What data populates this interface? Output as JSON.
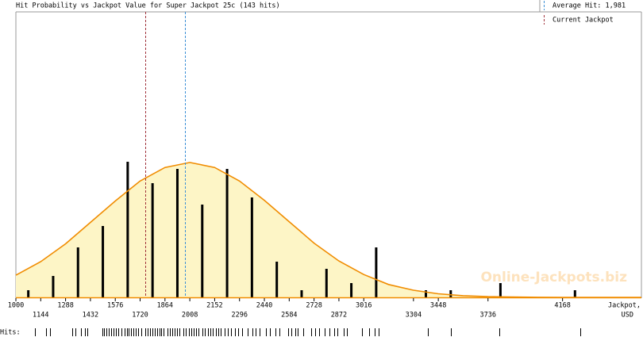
{
  "chart_data": {
    "type": "histogram-curve",
    "title": "Hit Probability vs Jackpot Value for Super Jackpot 25c (143 hits)",
    "x_label": [
      "Jackpot,",
      "USD"
    ],
    "watermark": "Online-Jackpots.biz",
    "xlim": [
      1000,
      4625
    ],
    "ylim": [
      0,
      40
    ],
    "xticks": [
      1000,
      1144,
      1288,
      1432,
      1576,
      1720,
      1864,
      2008,
      2152,
      2296,
      2440,
      2584,
      2728,
      2872,
      3016,
      3304,
      3448,
      3736,
      4168
    ],
    "bars": {
      "color": "#000000",
      "x": [
        1072,
        1216,
        1360,
        1504,
        1648,
        1792,
        1936,
        2080,
        2224,
        2368,
        2512,
        2656,
        2800,
        2944,
        3088,
        3376,
        3520,
        3808,
        4240
      ],
      "values": [
        1,
        3,
        7,
        10,
        19,
        16,
        18,
        13,
        18,
        14,
        5,
        1,
        4,
        2,
        7,
        1,
        1,
        2,
        1
      ]
    },
    "curve": {
      "color": "#f08c00",
      "fill": "#fdf5c6",
      "x": [
        1000,
        1144,
        1288,
        1432,
        1576,
        1720,
        1864,
        2008,
        2152,
        2296,
        2440,
        2584,
        2728,
        2872,
        3016,
        3160,
        3304,
        3448,
        3592,
        3736,
        3880,
        4024,
        4168,
        4312,
        4456,
        4625
      ],
      "values": [
        3.1,
        5.0,
        7.5,
        10.5,
        13.5,
        16.3,
        18.2,
        18.9,
        18.2,
        16.3,
        13.6,
        10.6,
        7.6,
        5.1,
        3.2,
        1.8,
        1.0,
        0.5,
        0.23,
        0.1,
        0.04,
        0.01,
        0,
        0,
        0,
        0
      ]
    },
    "average_hit": {
      "label": "Average Hit: 1,981",
      "value": 1981,
      "color": "#3a8fd6"
    },
    "current_jackpot": {
      "label": "Current Jackpot",
      "value": 1750,
      "color": "#a0303a"
    },
    "hits_label": "Hits:",
    "hits": [
      1110,
      1175,
      1198,
      1327,
      1345,
      1377,
      1400,
      1414,
      1501,
      1511,
      1524,
      1538,
      1552,
      1566,
      1580,
      1593,
      1612,
      1630,
      1644,
      1653,
      1667,
      1681,
      1695,
      1708,
      1727,
      1750,
      1764,
      1777,
      1791,
      1805,
      1819,
      1833,
      1842,
      1856,
      1879,
      1892,
      1906,
      1920,
      1934,
      1948,
      1971,
      1984,
      2003,
      2017,
      2030,
      2044,
      2058,
      2081,
      2095,
      2113,
      2127,
      2141,
      2159,
      2173,
      2187,
      2210,
      2228,
      2247,
      2270,
      2288,
      2311,
      2343,
      2371,
      2389,
      2412,
      2449,
      2472,
      2504,
      2527,
      2578,
      2596,
      2619,
      2633,
      2665,
      2711,
      2734,
      2757,
      2789,
      2817,
      2845,
      2863,
      2900,
      2918,
      3006,
      3047,
      3079,
      3102,
      3387,
      3521,
      3801,
      4271
    ]
  }
}
